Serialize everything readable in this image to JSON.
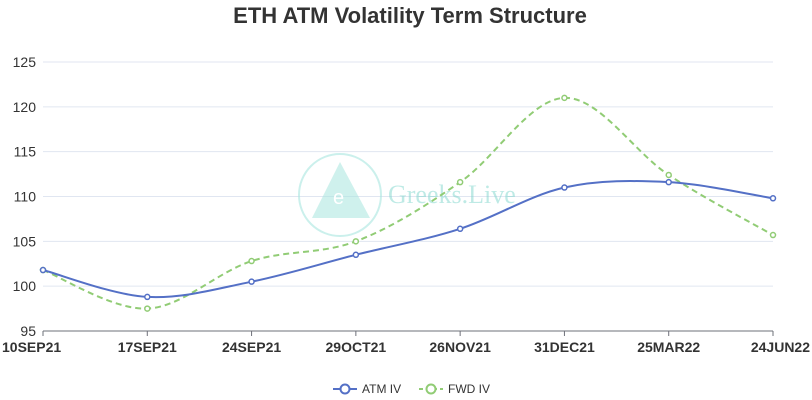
{
  "chart_data": {
    "type": "line",
    "title": "ETH ATM Volatility Term Structure",
    "categories": [
      "10SEP21",
      "17SEP21",
      "24SEP21",
      "29OCT21",
      "26NOV21",
      "31DEC21",
      "25MAR22",
      "24JUN22"
    ],
    "yticks": [
      95,
      100,
      105,
      110,
      115,
      120,
      125
    ],
    "ylim": [
      95,
      125
    ],
    "grid": true,
    "legend_position": "bottom",
    "series": [
      {
        "name": "ATM IV",
        "color": "#5470c6",
        "dashed": false,
        "values": [
          101.8,
          98.8,
          100.5,
          103.5,
          106.4,
          111.0,
          111.6,
          109.8
        ]
      },
      {
        "name": "FWD IV",
        "color": "#91cc75",
        "dashed": true,
        "values": [
          101.8,
          97.5,
          102.8,
          105.0,
          111.6,
          121.0,
          112.4,
          105.7
        ]
      }
    ]
  },
  "watermark": {
    "text": "Greeks.Live",
    "mark_letter": "e",
    "color": "#7fd6cd"
  }
}
